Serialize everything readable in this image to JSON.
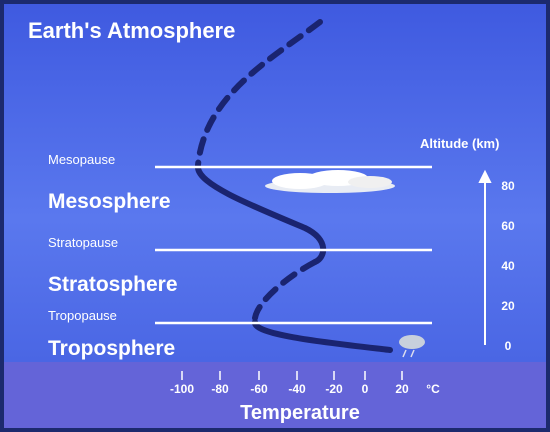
{
  "header": {
    "title": "Earth's Atmosphere"
  },
  "layers": [
    {
      "boundary": "Mesopause",
      "name": "Mesosphere"
    },
    {
      "boundary": "Stratopause",
      "name": "Stratosphere"
    },
    {
      "boundary": "Tropopause",
      "name": "Troposphere"
    }
  ],
  "altitude": {
    "label": "Altitude (km)",
    "ticks": [
      80,
      60,
      40,
      20,
      0
    ]
  },
  "temperature": {
    "label": "Temperature",
    "ticks": [
      -100,
      -80,
      -60,
      -40,
      -20,
      0,
      20
    ],
    "unit": "°C"
  }
}
